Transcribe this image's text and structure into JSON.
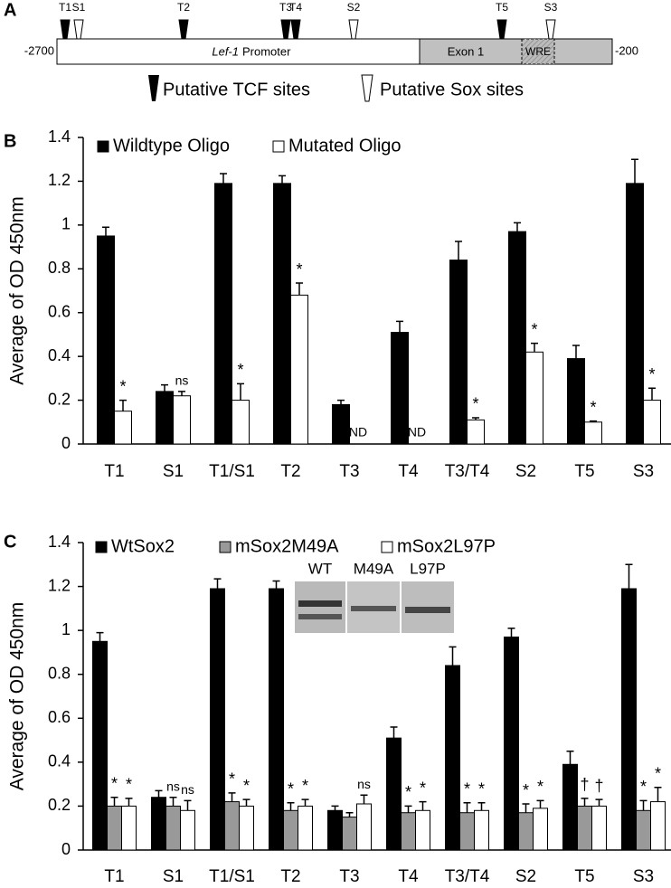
{
  "diagram": {
    "panel_label": "A",
    "sites": [
      "T1",
      "S1",
      "T2",
      "T3",
      "T4",
      "S2",
      "T5",
      "S3"
    ],
    "start": "-2700",
    "end": "-200",
    "promoter_gene": "Lef-1",
    "promoter": "Promoter",
    "exon": "Exon 1",
    "wre": "WRE",
    "legend": [
      "Putative TCF sites",
      "Putative Sox sites"
    ]
  },
  "chart_data": [
    {
      "type": "bar",
      "panel_label": "B",
      "y_label": "Average of OD 450nm",
      "categories": [
        "T1",
        "S1",
        "T1/S1",
        "T2",
        "T3",
        "T4",
        "T3/T4",
        "S2",
        "T5",
        "S3"
      ],
      "series": [
        {
          "name": "Wildtype Oligo",
          "color": "#000000",
          "values": [
            0.95,
            0.24,
            1.19,
            1.19,
            0.18,
            0.51,
            0.84,
            0.97,
            0.39,
            1.19
          ],
          "errors": [
            0.04,
            0.03,
            0.045,
            0.035,
            0.02,
            0.05,
            0.085,
            0.04,
            0.06,
            0.11
          ]
        },
        {
          "name": "Mutated Oligo",
          "color": "#ffffff",
          "values": [
            0.15,
            0.22,
            0.2,
            0.68,
            null,
            null,
            0.11,
            0.42,
            0.1,
            0.2
          ],
          "errors": [
            0.05,
            0.02,
            0.075,
            0.055,
            null,
            null,
            0.01,
            0.04,
            0.005,
            0.055
          ],
          "annotations": [
            "*",
            "ns",
            "*",
            "*",
            "ND",
            "ND",
            "*",
            "*",
            "*",
            "*"
          ]
        }
      ],
      "ylim": [
        0,
        1.4
      ],
      "yticks": [
        0,
        0.2,
        0.4,
        0.6,
        0.8,
        1,
        1.2,
        1.4
      ]
    },
    {
      "type": "bar",
      "panel_label": "C",
      "y_label": "Average of OD 450nm",
      "categories": [
        "T1",
        "S1",
        "T1/S1",
        "T2",
        "T3",
        "T4",
        "T3/T4",
        "S2",
        "T5",
        "S3"
      ],
      "series": [
        {
          "name": "WtSox2",
          "color": "#000000",
          "values": [
            0.95,
            0.24,
            1.19,
            1.19,
            0.18,
            0.51,
            0.84,
            0.97,
            0.39,
            1.19
          ],
          "errors": [
            0.04,
            0.03,
            0.045,
            0.035,
            0.02,
            0.05,
            0.085,
            0.04,
            0.06,
            0.11
          ]
        },
        {
          "name": "mSox2M49A",
          "color": "#999999",
          "values": [
            0.2,
            0.2,
            0.22,
            0.18,
            0.15,
            0.17,
            0.17,
            0.17,
            0.2,
            0.18
          ],
          "errors": [
            0.04,
            0.04,
            0.04,
            0.035,
            0.02,
            0.03,
            0.045,
            0.04,
            0.035,
            0.045
          ],
          "annotations": [
            "*",
            "ns",
            "*",
            "*",
            null,
            "*",
            "*",
            "*",
            "†",
            "*"
          ]
        },
        {
          "name": "mSox2L97P",
          "color": "#ffffff",
          "values": [
            0.2,
            0.18,
            0.2,
            0.2,
            0.21,
            0.18,
            0.18,
            0.19,
            0.2,
            0.22
          ],
          "errors": [
            0.035,
            0.045,
            0.03,
            0.03,
            0.04,
            0.04,
            0.035,
            0.035,
            0.03,
            0.065
          ],
          "annotations": [
            "*",
            "ns",
            "*",
            "*",
            "ns",
            "*",
            "*",
            "*",
            "†",
            "*"
          ]
        }
      ],
      "inset_labels": [
        "WT",
        "M49A",
        "L97P"
      ],
      "ylim": [
        0,
        1.4
      ],
      "yticks": [
        0,
        0.2,
        0.4,
        0.6,
        0.8,
        1,
        1.2,
        1.4
      ]
    }
  ]
}
